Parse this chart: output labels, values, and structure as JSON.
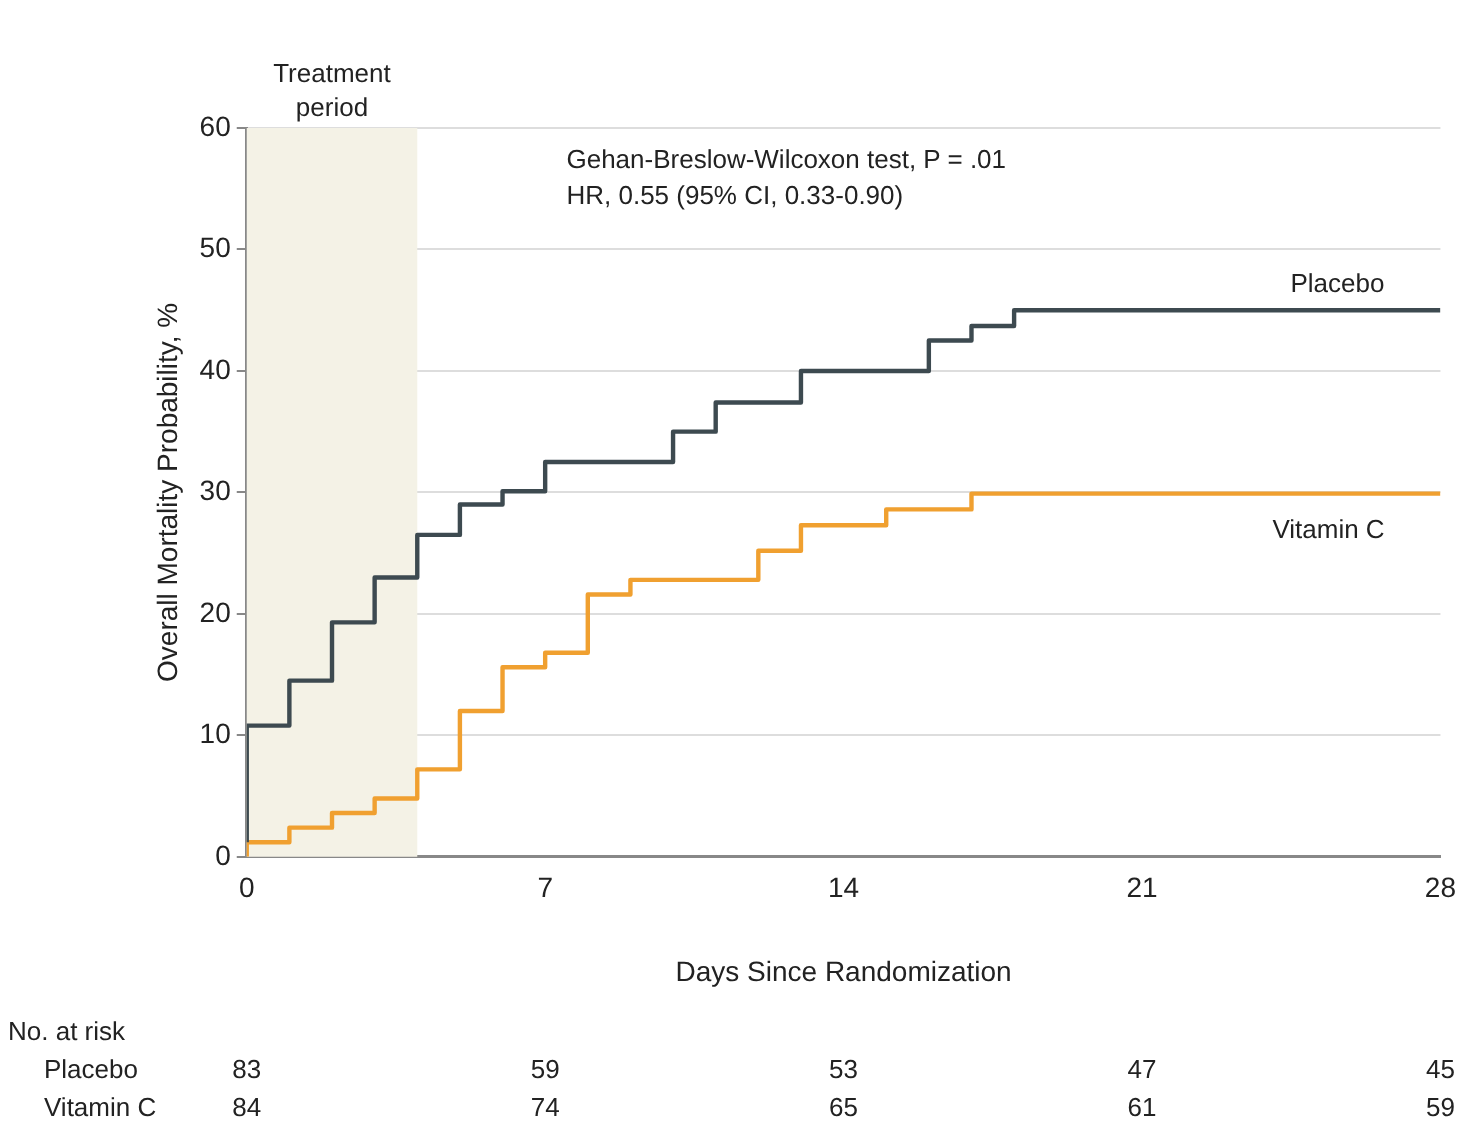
{
  "chart_data": {
    "type": "step",
    "xlabel": "Days Since Randomization",
    "ylabel": "Overall Mortality Probability, %",
    "xlim": [
      0,
      28
    ],
    "xticks": [
      0,
      7,
      14,
      21,
      28
    ],
    "ylim": [
      0,
      60
    ],
    "yticks": [
      0,
      10,
      20,
      30,
      40,
      50,
      60
    ],
    "grid": "y",
    "legend": false,
    "line_style": "solid",
    "marker": "none",
    "series": [
      {
        "name": "Placebo",
        "color": "#3d4a50",
        "x": [
          0,
          1,
          2,
          3,
          4,
          5,
          6,
          7,
          10,
          11,
          13,
          16,
          17,
          18,
          25,
          28
        ],
        "values": [
          1.2,
          10.8,
          14.5,
          19.3,
          23,
          26.5,
          29,
          30.1,
          32.5,
          35,
          37.4,
          40,
          42.5,
          43.7,
          45,
          45
        ]
      },
      {
        "name": "Vitamin C",
        "color": "#f0a030",
        "x": [
          0,
          1,
          2,
          3,
          4,
          5,
          6,
          7,
          8,
          9,
          12,
          13,
          15,
          17,
          25,
          28
        ],
        "values": [
          0,
          1.2,
          2.4,
          3.6,
          4.8,
          7.2,
          12,
          15.6,
          16.8,
          21.6,
          22.8,
          25.2,
          27.3,
          28.6,
          29.9,
          29.9
        ]
      }
    ],
    "bands": [
      {
        "axis": "x",
        "from": 0,
        "to": 4,
        "label": "Treatment period",
        "color": "#f4f2e6"
      }
    ],
    "annotations": [
      "Gehan-Breslow-Wilcoxon test, P = .01",
      "HR, 0.55 (95% CI, 0.33-0.90)",
      "No. at risk",
      "Placebo\t83\t59\t53\t47\t45",
      "Vitamin C\t84\t74\t65\t61\t59"
    ]
  }
}
